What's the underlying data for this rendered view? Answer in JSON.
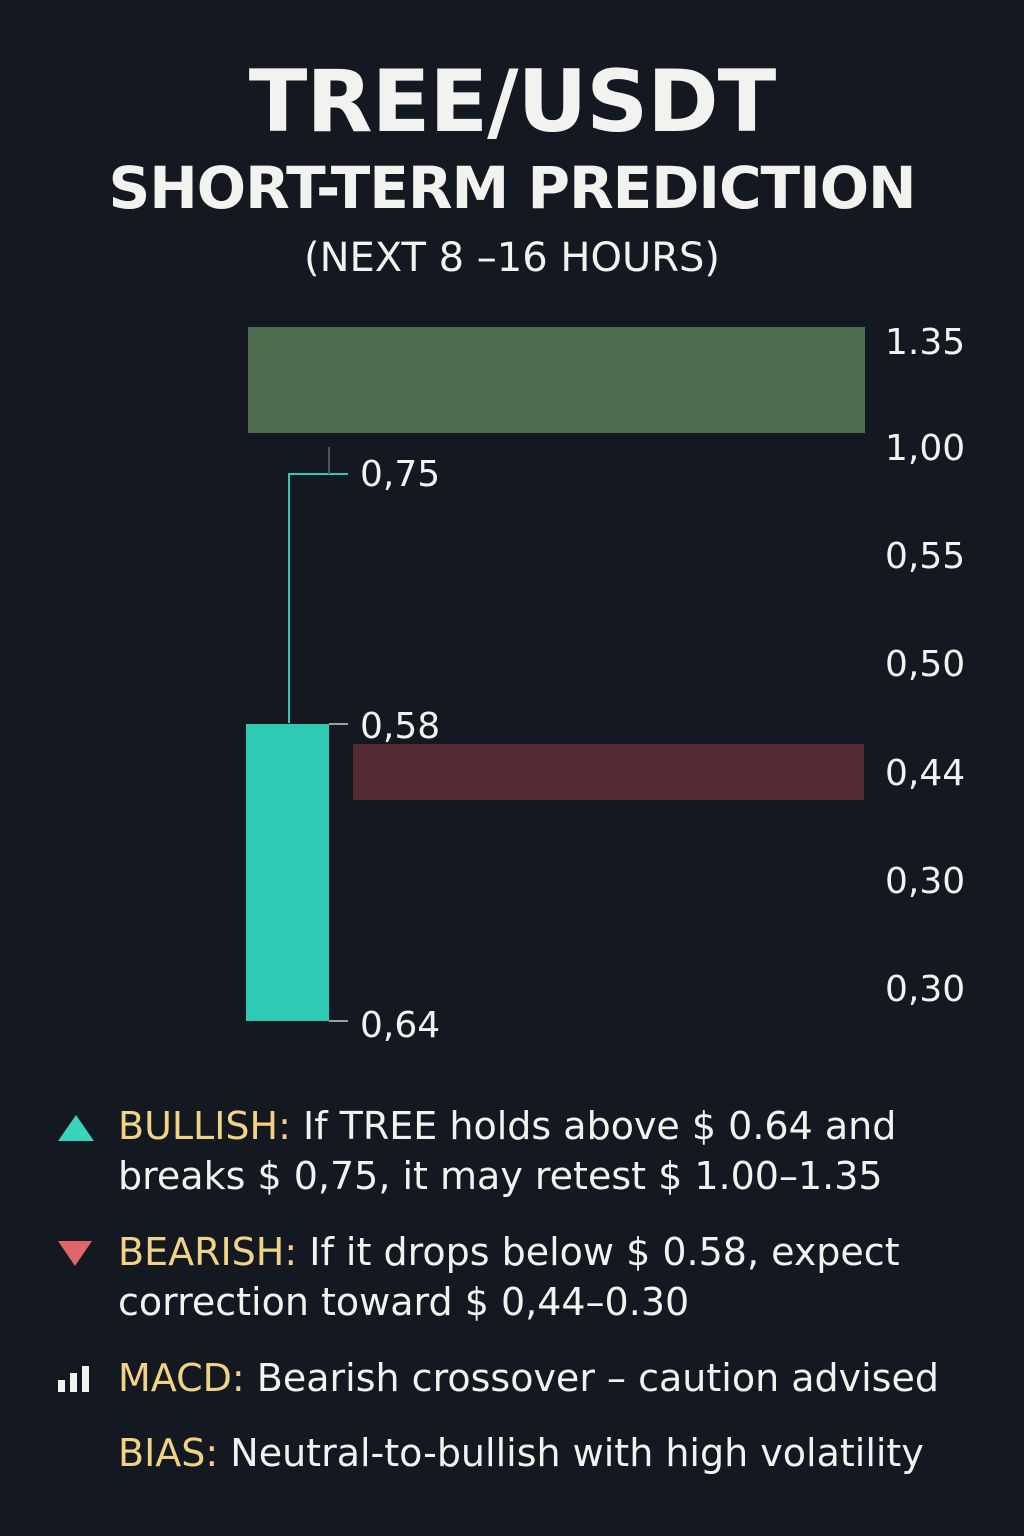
{
  "header": {
    "title": "TREE/USDT",
    "subtitle": "SHORT-TERM PREDICTION",
    "window": "(NEXT 8 –16 HOURS)"
  },
  "chart_data": {
    "type": "candlestick-levels",
    "candle": {
      "color": "#2ecab3",
      "wick_top_label": "0,75",
      "body_top_label": "0,58",
      "body_bottom_label": "0,64"
    },
    "zones": [
      {
        "name": "resistance",
        "color": "#4e6e4f",
        "from_label": "1.35",
        "to_label": "1,00"
      },
      {
        "name": "support",
        "color": "#552b33",
        "at_label": "0,44"
      }
    ],
    "price_axis_labels": [
      "1.35",
      "1,00",
      "0,55",
      "0,50",
      "0,44",
      "0,30",
      "0,30"
    ]
  },
  "notes": [
    {
      "icon": "triangle-up-icon",
      "color": "#38d3bb",
      "key": "BULLISH:",
      "text": " If TREE holds above $ 0.64 and breaks $ 0,75, it may retest $ 1.00–1.35"
    },
    {
      "icon": "triangle-down-icon",
      "color": "#e0666a",
      "key": "BEARISH:",
      "text": " If it drops below $ 0.58, expect correction toward $ 0,44–0.30"
    },
    {
      "icon": "bar-chart-icon",
      "color": "#f2f2ef",
      "key": "MACD:",
      "text": " Bearish crossover – caution advised"
    },
    {
      "icon": "",
      "color": "",
      "key": "BIAS:",
      "text": " Neutral-to-bullish with high volatility"
    }
  ]
}
